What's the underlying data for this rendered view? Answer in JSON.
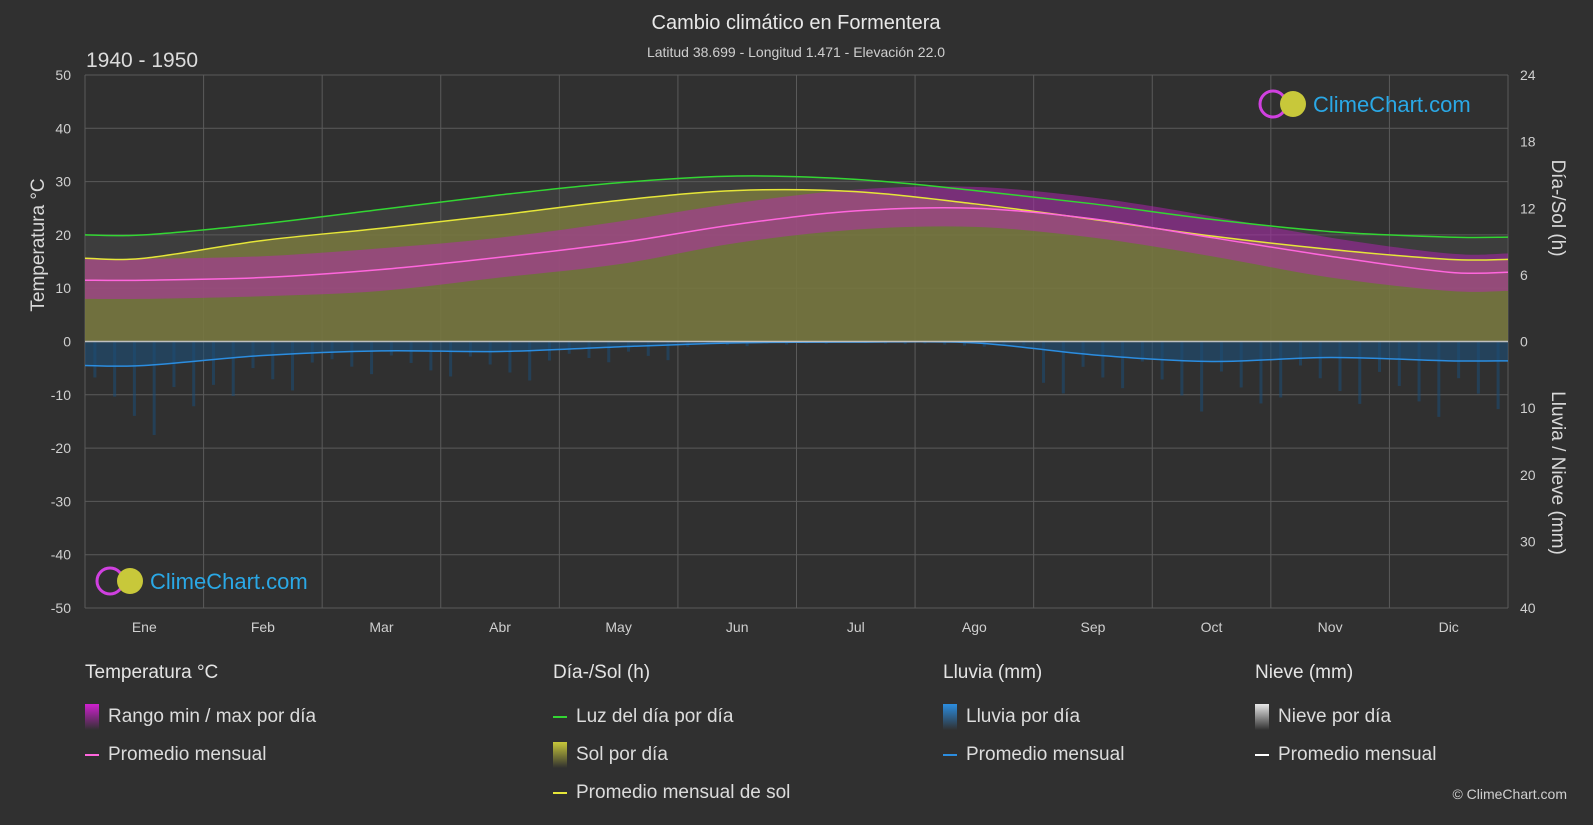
{
  "header": {
    "title": "Cambio climático en Formentera",
    "subtitle": "Latitud 38.699 - Longitud 1.471 - Elevación 22.0",
    "period": "1940 - 1950"
  },
  "logo": {
    "text": "ClimeChart.com"
  },
  "copyright": "© ClimeChart.com",
  "colors": {
    "background": "#303030",
    "grid": "#5a5a5a",
    "daylight": "#33d633",
    "sunshine_fill": "#8c8c32",
    "sunshine_line": "#e6e639",
    "temp_range": "#c020c0",
    "temp_avg": "#ff66dd",
    "rain_fill": "#1c4e78",
    "rain_line": "#2b8de0",
    "snow_line": "#ffffff"
  },
  "chart_data": {
    "type": "line",
    "categories": [
      "Ene",
      "Feb",
      "Mar",
      "Abr",
      "May",
      "Jun",
      "Jul",
      "Ago",
      "Sep",
      "Oct",
      "Nov",
      "Dic"
    ],
    "axes": {
      "left": {
        "title": "Temperatura °C",
        "min": -50,
        "max": 50,
        "ticks": [
          "50",
          "40",
          "30",
          "20",
          "10",
          "0",
          "-10",
          "-20",
          "-30",
          "-40",
          "-50"
        ]
      },
      "right_top": {
        "title": "Día-/Sol (h)",
        "min": 0,
        "max": 24,
        "ticks": [
          "24",
          "18",
          "12",
          "6",
          "0"
        ]
      },
      "right_bottom": {
        "title": "Lluvia / Nieve (mm)",
        "min": 0,
        "max": 40,
        "ticks": [
          "10",
          "20",
          "30",
          "40"
        ]
      }
    },
    "grid": true,
    "series": [
      {
        "name": "Luz del día por día",
        "unit": "h",
        "values": [
          9.6,
          10.6,
          11.9,
          13.2,
          14.3,
          14.9,
          14.6,
          13.6,
          12.4,
          11.0,
          9.9,
          9.4
        ]
      },
      {
        "name": "Promedio mensual de sol",
        "unit": "h",
        "values": [
          7.5,
          9.1,
          10.2,
          11.4,
          12.7,
          13.6,
          13.5,
          12.4,
          11.0,
          9.5,
          8.3,
          7.4
        ]
      },
      {
        "name": "Temperatura promedio mensual",
        "unit": "°C",
        "values": [
          11.5,
          12.0,
          13.5,
          15.8,
          18.5,
          22.0,
          24.5,
          25.0,
          23.0,
          19.5,
          16.0,
          13.0
        ]
      },
      {
        "name": "Temperatura máxima",
        "unit": "°C",
        "values": [
          15.5,
          16.0,
          17.5,
          19.5,
          22.5,
          26.0,
          28.5,
          29.0,
          27.0,
          23.5,
          19.5,
          16.5
        ]
      },
      {
        "name": "Temperatura mínima",
        "unit": "°C",
        "values": [
          8.0,
          8.5,
          9.5,
          12.0,
          14.5,
          18.5,
          21.0,
          21.5,
          19.5,
          16.0,
          12.0,
          9.5
        ]
      },
      {
        "name": "Lluvia promedio mensual",
        "unit": "mm",
        "values": [
          3.6,
          2.1,
          1.4,
          1.5,
          0.8,
          0.2,
          0.1,
          0.2,
          2.0,
          3.0,
          2.4,
          2.9
        ]
      },
      {
        "name": "Nieve promedio mensual",
        "unit": "mm",
        "values": [
          0,
          0,
          0,
          0,
          0,
          0,
          0,
          0,
          0,
          0,
          0,
          0
        ]
      }
    ]
  },
  "legend": [
    {
      "heading": "Temperatura °C",
      "items": [
        {
          "label": "Rango min / max por día",
          "kind": "block",
          "color": "#d020d0"
        },
        {
          "label": "Promedio mensual",
          "kind": "line",
          "color": "#ff66dd"
        }
      ]
    },
    {
      "heading": "Día-/Sol (h)",
      "items": [
        {
          "label": "Luz del día por día",
          "kind": "line",
          "color": "#33d633"
        },
        {
          "label": "Sol por día",
          "kind": "block",
          "color": "#c8c83a"
        },
        {
          "label": "Promedio mensual de sol",
          "kind": "line",
          "color": "#e6e639"
        }
      ]
    },
    {
      "heading": "Lluvia (mm)",
      "items": [
        {
          "label": "Lluvia por día",
          "kind": "block",
          "color": "#2b8de0"
        },
        {
          "label": "Promedio mensual",
          "kind": "line",
          "color": "#2b8de0"
        }
      ]
    },
    {
      "heading": "Nieve (mm)",
      "items": [
        {
          "label": "Nieve por día",
          "kind": "block",
          "color": "#e8e8e8"
        },
        {
          "label": "Promedio mensual",
          "kind": "line",
          "color": "#ffffff"
        }
      ]
    }
  ]
}
